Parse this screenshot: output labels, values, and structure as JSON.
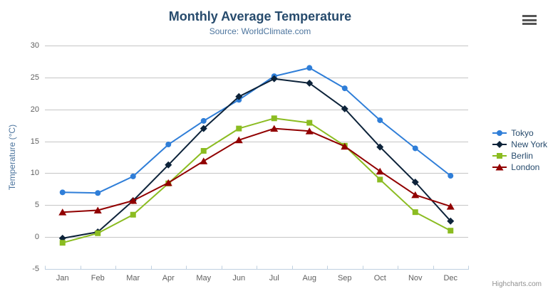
{
  "chart_data": {
    "type": "line",
    "title": "Monthly Average Temperature",
    "subtitle": "Source: WorldClimate.com",
    "xlabel": "",
    "ylabel": "Temperature (°C)",
    "ylim": [
      -5,
      30
    ],
    "ytick_interval": 5,
    "grid": true,
    "legend_position": "right",
    "categories": [
      "Jan",
      "Feb",
      "Mar",
      "Apr",
      "May",
      "Jun",
      "Jul",
      "Aug",
      "Sep",
      "Oct",
      "Nov",
      "Dec"
    ],
    "series": [
      {
        "name": "Tokyo",
        "color": "#2f7ed8",
        "marker": "circle",
        "values": [
          7.0,
          6.9,
          9.5,
          14.5,
          18.2,
          21.5,
          25.2,
          26.5,
          23.3,
          18.3,
          13.9,
          9.6
        ]
      },
      {
        "name": "New York",
        "color": "#0d233a",
        "marker": "diamond",
        "values": [
          -0.2,
          0.8,
          5.7,
          11.3,
          17.0,
          22.0,
          24.8,
          24.1,
          20.1,
          14.1,
          8.6,
          2.5
        ]
      },
      {
        "name": "Berlin",
        "color": "#8bbc21",
        "marker": "square",
        "values": [
          -0.9,
          0.6,
          3.5,
          8.4,
          13.5,
          17.0,
          18.6,
          17.9,
          14.3,
          9.0,
          3.9,
          1.0
        ]
      },
      {
        "name": "London",
        "color": "#910000",
        "marker": "triangle",
        "values": [
          3.9,
          4.2,
          5.7,
          8.5,
          11.9,
          15.2,
          17.0,
          16.6,
          14.2,
          10.3,
          6.6,
          4.8
        ]
      }
    ]
  },
  "credit": "Highcharts.com",
  "export_menu_icon": "hamburger-icon",
  "colors": {
    "background": "#ffffff",
    "title": "#274b6d",
    "subtitle": "#4d759e",
    "axis_title": "#4d759e",
    "axis_label": "#606060",
    "grid_line": "#c6c6c6",
    "axis_line": "#c0d0e0",
    "legend_text": "#274b6d",
    "credit_text": "#909090",
    "menu_icon": "#555555"
  }
}
